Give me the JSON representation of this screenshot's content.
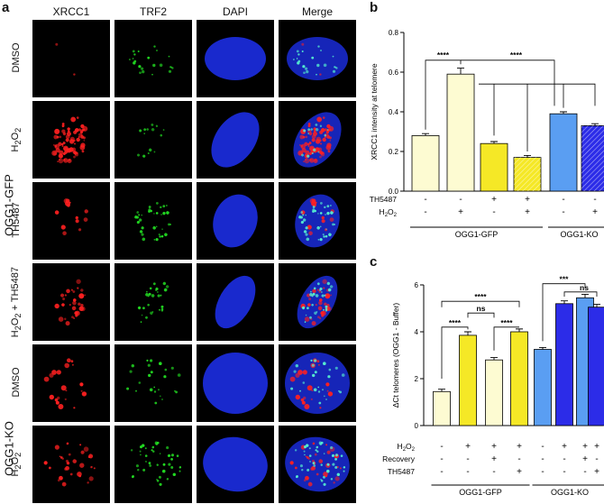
{
  "panel_a": {
    "letter": "a",
    "columns": [
      "XRCC1",
      "TRF2",
      "DAPI",
      "Merge"
    ],
    "group_labels": [
      "OGG1-GFP",
      "OGG1-KO"
    ],
    "rows": [
      {
        "label": "DMSO",
        "label_html": "DMSO"
      },
      {
        "label": "H2O2",
        "label_html": "H<sub>2</sub>O<sub>2</sub>"
      },
      {
        "label": "TH5487",
        "label_html": "TH5487"
      },
      {
        "label": "H2O2 + TH5487",
        "label_html": "H<sub>2</sub>O<sub>2</sub> + TH5487"
      },
      {
        "label": "DMSO",
        "label_html": "DMSO"
      },
      {
        "label": "H2O2",
        "label_html": "H<sub>2</sub>O<sub>2</sub>"
      }
    ],
    "colors": {
      "xrcc1": "#ff2020",
      "trf2": "#22dd22",
      "dapi": "#1a2bd8"
    }
  },
  "panel_b": {
    "letter": "b",
    "chart_data": {
      "type": "bar",
      "ylabel": "XRCC1 intensity at telomere",
      "ylim": [
        0,
        0.8
      ],
      "yticks": [
        "0.0",
        "0.2",
        "0.4",
        "0.6",
        "0.8"
      ],
      "values": [
        0.28,
        0.59,
        0.24,
        0.17,
        0.39,
        0.33
      ],
      "errors": [
        0.01,
        0.03,
        0.01,
        0.01,
        0.01,
        0.01
      ],
      "colors": [
        "#fdfbd2",
        "#fdfbd2",
        "#f5e826",
        "#f5e826",
        "#5a9ef2",
        "#2c2ce8"
      ],
      "hatched": [
        false,
        false,
        false,
        true,
        false,
        true
      ],
      "conditions": [
        {
          "name": "TH5487",
          "values": [
            "-",
            "-",
            "+",
            "+",
            "-",
            "-"
          ]
        },
        {
          "name": "H2O2",
          "values": [
            "-",
            "+",
            "-",
            "+",
            "-",
            "+"
          ]
        }
      ],
      "groups": [
        {
          "label": "OGG1-GFP",
          "bars": [
            0,
            3
          ]
        },
        {
          "label": "OGG1-KO",
          "bars": [
            4,
            5
          ]
        }
      ],
      "significance": [
        "****",
        "****"
      ]
    }
  },
  "panel_c": {
    "letter": "c",
    "chart_data": {
      "type": "bar",
      "ylabel": "ΔCt telomeres (OGG1 - Buffer)",
      "ylim": [
        0,
        6
      ],
      "yticks": [
        "0",
        "2",
        "4",
        "6"
      ],
      "values": [
        1.45,
        3.85,
        2.8,
        4.0,
        3.25,
        5.2,
        5.45,
        5.05
      ],
      "errors": [
        0.1,
        0.15,
        0.1,
        0.12,
        0.08,
        0.12,
        0.15,
        0.12
      ],
      "colors": [
        "#fdfbd2",
        "#f5e826",
        "#fdfbd2",
        "#f5e826",
        "#5a9ef2",
        "#2c2ce8",
        "#5a9ef2",
        "#2c2ce8"
      ],
      "conditions": [
        {
          "name": "H2O2",
          "values": [
            "-",
            "+",
            "+",
            "+",
            "-",
            "+",
            "+",
            "+"
          ]
        },
        {
          "name": "Recovery",
          "values": [
            "-",
            "-",
            "+",
            "-",
            "-",
            "-",
            "+",
            "-"
          ]
        },
        {
          "name": "TH5487",
          "values": [
            "-",
            "-",
            "-",
            "+",
            "-",
            "-",
            "-",
            "+"
          ]
        }
      ],
      "groups": [
        {
          "label": "OGG1-GFP",
          "bars": [
            0,
            3
          ]
        },
        {
          "label": "OGG1-KO",
          "bars": [
            4,
            7
          ]
        }
      ],
      "significance": [
        "****",
        "****",
        "****",
        "ns",
        "***",
        "ns"
      ]
    }
  }
}
